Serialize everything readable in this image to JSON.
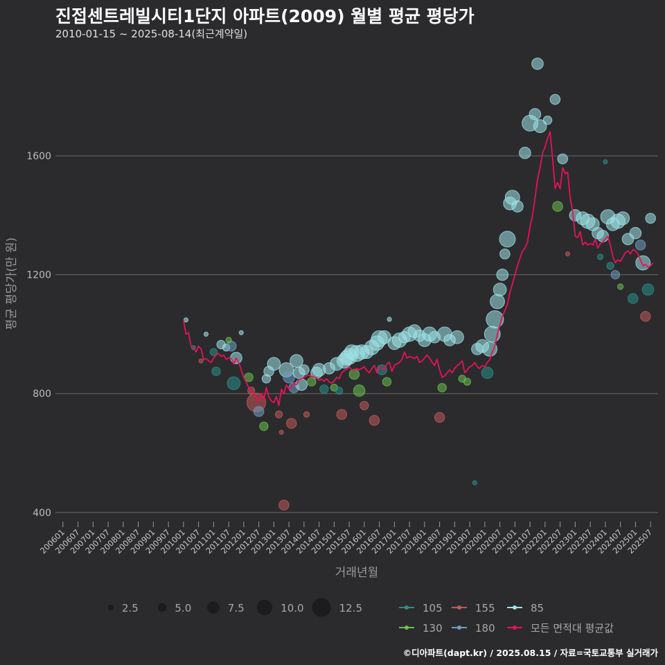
{
  "title": "진접센트레빌시티1단지 아파트(2009) 월별 평균 평당가",
  "subtitle": "2010-01-15 ~ 2025-08-14(최근계약일)",
  "footer": "©디아파트(dapt.kr) / 2025.08.15 / 자료=국토교통부 실거래가",
  "colors": {
    "background": "#2b2b2d",
    "grid": "#6a6a6a",
    "avg_line": "#e8115a",
    "s85": "#9ee4e8",
    "s105": "#2a8f88",
    "s130": "#6cc050",
    "s155": "#c25a5a",
    "s180": "#6f9fbf"
  },
  "chart_data": {
    "type": "scatter",
    "xlabel": "거래년월",
    "ylabel": "평균 평당가(만 원)",
    "ylim": [
      360,
      1980
    ],
    "y_ticks": [
      400,
      800,
      1200,
      1600
    ],
    "grid": true,
    "x_tick_labels": [
      "200601",
      "200607",
      "200701",
      "200707",
      "200801",
      "200807",
      "200901",
      "200907",
      "201001",
      "201007",
      "201101",
      "201107",
      "201201",
      "201207",
      "201301",
      "201307",
      "201401",
      "201407",
      "201501",
      "201507",
      "201601",
      "201607",
      "201701",
      "201707",
      "201801",
      "201807",
      "201901",
      "201907",
      "202001",
      "202007",
      "202101",
      "202107",
      "202201",
      "202207",
      "202301",
      "202307",
      "202401",
      "202407",
      "202501",
      "202507"
    ],
    "x_range": [
      "2005-10",
      "2025-10"
    ],
    "size_legend": [
      2.5,
      5.0,
      7.5,
      10.0,
      12.5
    ],
    "series_legend": [
      "105",
      "155",
      "85",
      "130",
      "180",
      "모든 면적대 평균값"
    ],
    "avg_line": [
      [
        "2010-01",
        1048
      ],
      [
        "2010-02",
        1000
      ],
      [
        "2010-03",
        1005
      ],
      [
        "2010-04",
        960
      ],
      [
        "2010-05",
        955
      ],
      [
        "2010-06",
        940
      ],
      [
        "2010-07",
        960
      ],
      [
        "2010-08",
        950
      ],
      [
        "2010-09",
        915
      ],
      [
        "2010-10",
        918
      ],
      [
        "2010-11",
        910
      ],
      [
        "2010-12",
        905
      ],
      [
        "2011-01",
        920
      ],
      [
        "2011-02",
        930
      ],
      [
        "2011-03",
        935
      ],
      [
        "2011-04",
        925
      ],
      [
        "2011-05",
        930
      ],
      [
        "2011-06",
        915
      ],
      [
        "2011-07",
        920
      ],
      [
        "2011-08",
        918
      ],
      [
        "2011-09",
        900
      ],
      [
        "2011-10",
        920
      ],
      [
        "2011-11",
        905
      ],
      [
        "2011-12",
        880
      ],
      [
        "2012-01",
        855
      ],
      [
        "2012-02",
        838
      ],
      [
        "2012-03",
        820
      ],
      [
        "2012-04",
        805
      ],
      [
        "2012-05",
        800
      ],
      [
        "2012-06",
        785
      ],
      [
        "2012-07",
        775
      ],
      [
        "2012-08",
        800
      ],
      [
        "2012-09",
        780
      ],
      [
        "2012-10",
        820
      ],
      [
        "2012-11",
        790
      ],
      [
        "2012-12",
        775
      ],
      [
        "2013-01",
        770
      ],
      [
        "2013-02",
        790
      ],
      [
        "2013-03",
        760
      ],
      [
        "2013-04",
        815
      ],
      [
        "2013-05",
        800
      ],
      [
        "2013-06",
        830
      ],
      [
        "2013-07",
        815
      ],
      [
        "2013-08",
        825
      ],
      [
        "2013-09",
        835
      ],
      [
        "2013-10",
        830
      ],
      [
        "2013-11",
        848
      ],
      [
        "2013-12",
        850
      ],
      [
        "2014-01",
        855
      ],
      [
        "2014-02",
        860
      ],
      [
        "2014-03",
        862
      ],
      [
        "2014-04",
        858
      ],
      [
        "2014-05",
        855
      ],
      [
        "2014-06",
        852
      ],
      [
        "2014-07",
        845
      ],
      [
        "2014-08",
        848
      ],
      [
        "2014-09",
        842
      ],
      [
        "2014-10",
        850
      ],
      [
        "2014-11",
        840
      ],
      [
        "2014-12",
        835
      ],
      [
        "2015-01",
        842
      ],
      [
        "2015-02",
        855
      ],
      [
        "2015-03",
        850
      ],
      [
        "2015-04",
        870
      ],
      [
        "2015-05",
        878
      ],
      [
        "2015-06",
        882
      ],
      [
        "2015-07",
        890
      ],
      [
        "2015-08",
        880
      ],
      [
        "2015-09",
        878
      ],
      [
        "2015-10",
        885
      ],
      [
        "2015-11",
        880
      ],
      [
        "2015-12",
        885
      ],
      [
        "2016-01",
        890
      ],
      [
        "2016-02",
        878
      ],
      [
        "2016-03",
        870
      ],
      [
        "2016-04",
        885
      ],
      [
        "2016-05",
        895
      ],
      [
        "2016-06",
        870
      ],
      [
        "2016-07",
        890
      ],
      [
        "2016-08",
        885
      ],
      [
        "2016-09",
        880
      ],
      [
        "2016-10",
        900
      ],
      [
        "2016-11",
        905
      ],
      [
        "2016-12",
        875
      ],
      [
        "2017-01",
        895
      ],
      [
        "2017-02",
        900
      ],
      [
        "2017-03",
        905
      ],
      [
        "2017-04",
        915
      ],
      [
        "2017-05",
        940
      ],
      [
        "2017-06",
        920
      ],
      [
        "2017-07",
        925
      ],
      [
        "2017-08",
        922
      ],
      [
        "2017-09",
        918
      ],
      [
        "2017-10",
        925
      ],
      [
        "2017-11",
        905
      ],
      [
        "2017-12",
        910
      ],
      [
        "2018-01",
        920
      ],
      [
        "2018-02",
        930
      ],
      [
        "2018-03",
        920
      ],
      [
        "2018-04",
        905
      ],
      [
        "2018-05",
        895
      ],
      [
        "2018-06",
        915
      ],
      [
        "2018-07",
        880
      ],
      [
        "2018-08",
        855
      ],
      [
        "2018-09",
        860
      ],
      [
        "2018-10",
        870
      ],
      [
        "2018-11",
        880
      ],
      [
        "2018-12",
        870
      ],
      [
        "2019-01",
        885
      ],
      [
        "2019-02",
        895
      ],
      [
        "2019-03",
        900
      ],
      [
        "2019-04",
        910
      ],
      [
        "2019-05",
        870
      ],
      [
        "2019-06",
        880
      ],
      [
        "2019-07",
        890
      ],
      [
        "2019-08",
        895
      ],
      [
        "2019-09",
        905
      ],
      [
        "2019-10",
        890
      ],
      [
        "2019-11",
        885
      ],
      [
        "2019-12",
        895
      ],
      [
        "2020-01",
        890
      ],
      [
        "2020-02",
        905
      ],
      [
        "2020-03",
        915
      ],
      [
        "2020-04",
        940
      ],
      [
        "2020-05",
        960
      ],
      [
        "2020-06",
        1000
      ],
      [
        "2020-07",
        1030
      ],
      [
        "2020-08",
        1060
      ],
      [
        "2020-09",
        1080
      ],
      [
        "2020-10",
        1100
      ],
      [
        "2020-11",
        1140
      ],
      [
        "2020-12",
        1170
      ],
      [
        "2021-01",
        1200
      ],
      [
        "2021-02",
        1230
      ],
      [
        "2021-03",
        1255
      ],
      [
        "2021-04",
        1280
      ],
      [
        "2021-05",
        1290
      ],
      [
        "2021-06",
        1310
      ],
      [
        "2021-07",
        1360
      ],
      [
        "2021-08",
        1400
      ],
      [
        "2021-09",
        1460
      ],
      [
        "2021-10",
        1520
      ],
      [
        "2021-11",
        1560
      ],
      [
        "2021-12",
        1610
      ],
      [
        "2022-01",
        1630
      ],
      [
        "2022-02",
        1660
      ],
      [
        "2022-03",
        1680
      ],
      [
        "2022-04",
        1590
      ],
      [
        "2022-05",
        1490
      ],
      [
        "2022-06",
        1510
      ],
      [
        "2022-07",
        1490
      ],
      [
        "2022-08",
        1560
      ],
      [
        "2022-09",
        1540
      ],
      [
        "2022-10",
        1545
      ],
      [
        "2022-11",
        1460
      ],
      [
        "2022-12",
        1410
      ],
      [
        "2023-01",
        1330
      ],
      [
        "2023-02",
        1325
      ],
      [
        "2023-03",
        1345
      ],
      [
        "2023-04",
        1300
      ],
      [
        "2023-05",
        1310
      ],
      [
        "2023-06",
        1300
      ],
      [
        "2023-07",
        1305
      ],
      [
        "2023-08",
        1300
      ],
      [
        "2023-09",
        1320
      ],
      [
        "2023-10",
        1290
      ],
      [
        "2023-11",
        1305
      ],
      [
        "2023-12",
        1310
      ],
      [
        "2024-01",
        1320
      ],
      [
        "2024-02",
        1330
      ],
      [
        "2024-03",
        1300
      ],
      [
        "2024-04",
        1260
      ],
      [
        "2024-05",
        1240
      ],
      [
        "2024-06",
        1250
      ],
      [
        "2024-07",
        1245
      ],
      [
        "2024-08",
        1260
      ],
      [
        "2024-09",
        1275
      ],
      [
        "2024-10",
        1280
      ],
      [
        "2024-11",
        1270
      ],
      [
        "2024-12",
        1285
      ],
      [
        "2025-01",
        1280
      ],
      [
        "2025-02",
        1270
      ],
      [
        "2025-03",
        1250
      ],
      [
        "2025-04",
        1230
      ],
      [
        "2025-05",
        1235
      ],
      [
        "2025-06",
        1225
      ],
      [
        "2025-07",
        1230
      ],
      [
        "2025-08",
        1240
      ]
    ],
    "points": [
      [
        "2010-02",
        1048,
        "85",
        1
      ],
      [
        "2010-05",
        955,
        "105",
        1
      ],
      [
        "2010-08",
        910,
        "155",
        1
      ],
      [
        "2010-10",
        1000,
        "85",
        1
      ],
      [
        "2011-01",
        940,
        "105",
        3
      ],
      [
        "2011-02",
        875,
        "105",
        4
      ],
      [
        "2011-04",
        965,
        "85",
        4
      ],
      [
        "2011-06",
        955,
        "85",
        3
      ],
      [
        "2011-08",
        960,
        "180",
        5
      ],
      [
        "2011-09",
        835,
        "105",
        7
      ],
      [
        "2011-10",
        920,
        "85",
        6
      ],
      [
        "2011-07",
        980,
        "130",
        2
      ],
      [
        "2011-12",
        1005,
        "85",
        1
      ],
      [
        "2012-03",
        855,
        "130",
        4
      ],
      [
        "2012-04",
        810,
        "155",
        3
      ],
      [
        "2012-06",
        770,
        "155",
        11
      ],
      [
        "2012-07",
        740,
        "180",
        5
      ],
      [
        "2012-09",
        690,
        "130",
        4
      ],
      [
        "2012-10",
        850,
        "85",
        4
      ],
      [
        "2012-11",
        875,
        "85",
        5
      ],
      [
        "2013-01",
        900,
        "85",
        7
      ],
      [
        "2013-03",
        730,
        "155",
        3
      ],
      [
        "2013-04",
        670,
        "155",
        1
      ],
      [
        "2013-05",
        425,
        "155",
        5
      ],
      [
        "2013-06",
        880,
        "85",
        8
      ],
      [
        "2013-07",
        855,
        "180",
        6
      ],
      [
        "2013-08",
        700,
        "155",
        5
      ],
      [
        "2013-09",
        820,
        "180",
        5
      ],
      [
        "2013-10",
        910,
        "85",
        7
      ],
      [
        "2013-11",
        870,
        "85",
        6
      ],
      [
        "2013-12",
        830,
        "85",
        6
      ],
      [
        "2014-01",
        880,
        "85",
        5
      ],
      [
        "2014-02",
        730,
        "155",
        2
      ],
      [
        "2014-04",
        840,
        "130",
        4
      ],
      [
        "2014-06",
        870,
        "85",
        6
      ],
      [
        "2014-07",
        880,
        "85",
        7
      ],
      [
        "2014-09",
        815,
        "105",
        4
      ],
      [
        "2014-11",
        885,
        "85",
        6
      ],
      [
        "2015-01",
        820,
        "130",
        3
      ],
      [
        "2015-02",
        900,
        "85",
        7
      ],
      [
        "2015-03",
        810,
        "105",
        3
      ],
      [
        "2015-04",
        730,
        "155",
        5
      ],
      [
        "2015-05",
        910,
        "85",
        8
      ],
      [
        "2015-06",
        920,
        "85",
        8
      ],
      [
        "2015-07",
        925,
        "85",
        9
      ],
      [
        "2015-08",
        940,
        "85",
        8
      ],
      [
        "2015-09",
        865,
        "130",
        5
      ],
      [
        "2015-10",
        935,
        "85",
        9
      ],
      [
        "2015-11",
        810,
        "130",
        6
      ],
      [
        "2015-12",
        940,
        "85",
        8
      ],
      [
        "2016-01",
        760,
        "155",
        4
      ],
      [
        "2016-02",
        940,
        "85",
        7
      ],
      [
        "2016-04",
        955,
        "85",
        8
      ],
      [
        "2016-05",
        710,
        "155",
        5
      ],
      [
        "2016-06",
        970,
        "85",
        8
      ],
      [
        "2016-07",
        985,
        "85",
        9
      ],
      [
        "2016-08",
        880,
        "105",
        5
      ],
      [
        "2016-09",
        990,
        "85",
        7
      ],
      [
        "2016-10",
        840,
        "130",
        4
      ],
      [
        "2016-11",
        1050,
        "85",
        1
      ],
      [
        "2017-01",
        970,
        "85",
        7
      ],
      [
        "2017-03",
        980,
        "85",
        8
      ],
      [
        "2017-05",
        990,
        "85",
        6
      ],
      [
        "2017-07",
        1000,
        "85",
        8
      ],
      [
        "2017-09",
        1010,
        "85",
        7
      ],
      [
        "2017-11",
        995,
        "85",
        6
      ],
      [
        "2018-01",
        980,
        "85",
        7
      ],
      [
        "2018-03",
        1000,
        "85",
        8
      ],
      [
        "2018-05",
        990,
        "85",
        6
      ],
      [
        "2018-07",
        720,
        "155",
        5
      ],
      [
        "2018-08",
        820,
        "130",
        4
      ],
      [
        "2018-09",
        1000,
        "85",
        8
      ],
      [
        "2018-11",
        980,
        "85",
        6
      ],
      [
        "2019-02",
        990,
        "85",
        7
      ],
      [
        "2019-04",
        850,
        "130",
        3
      ],
      [
        "2019-06",
        840,
        "130",
        3
      ],
      [
        "2019-09",
        500,
        "105",
        1
      ],
      [
        "2019-10",
        950,
        "85",
        6
      ],
      [
        "2019-12",
        960,
        "85",
        7
      ],
      [
        "2020-02",
        870,
        "105",
        6
      ],
      [
        "2020-03",
        950,
        "85",
        8
      ],
      [
        "2020-04",
        1000,
        "85",
        9
      ],
      [
        "2020-05",
        1050,
        "85",
        10
      ],
      [
        "2020-06",
        1110,
        "85",
        8
      ],
      [
        "2020-07",
        1150,
        "85",
        7
      ],
      [
        "2020-08",
        1200,
        "85",
        6
      ],
      [
        "2020-09",
        1270,
        "85",
        5
      ],
      [
        "2020-10",
        1320,
        "85",
        9
      ],
      [
        "2020-11",
        1440,
        "85",
        7
      ],
      [
        "2020-12",
        1460,
        "85",
        8
      ],
      [
        "2021-02",
        1430,
        "85",
        6
      ],
      [
        "2021-05",
        1610,
        "85",
        6
      ],
      [
        "2021-07",
        1710,
        "85",
        9
      ],
      [
        "2021-09",
        1740,
        "85",
        6
      ],
      [
        "2021-10",
        1910,
        "85",
        6
      ],
      [
        "2021-11",
        1700,
        "85",
        7
      ],
      [
        "2022-02",
        1720,
        "85",
        4
      ],
      [
        "2022-05",
        1790,
        "85",
        5
      ],
      [
        "2022-06",
        1430,
        "130",
        5
      ],
      [
        "2022-08",
        1590,
        "85",
        5
      ],
      [
        "2022-10",
        1270,
        "155",
        1
      ],
      [
        "2023-01",
        1400,
        "85",
        6
      ],
      [
        "2023-04",
        1390,
        "85",
        7
      ],
      [
        "2023-06",
        1380,
        "85",
        8
      ],
      [
        "2023-08",
        1370,
        "85",
        7
      ],
      [
        "2023-10",
        1340,
        "85",
        6
      ],
      [
        "2023-12",
        1330,
        "85",
        6
      ],
      [
        "2024-02",
        1395,
        "85",
        8
      ],
      [
        "2024-04",
        1370,
        "85",
        7
      ],
      [
        "2024-06",
        1380,
        "85",
        8
      ],
      [
        "2024-08",
        1390,
        "85",
        7
      ],
      [
        "2024-10",
        1320,
        "85",
        6
      ],
      [
        "2025-01",
        1340,
        "85",
        6
      ],
      [
        "2025-03",
        1300,
        "180",
        5
      ],
      [
        "2025-04",
        1240,
        "85",
        8
      ],
      [
        "2025-05",
        1060,
        "155",
        5
      ],
      [
        "2025-06",
        1150,
        "105",
        6
      ],
      [
        "2025-07",
        1390,
        "85",
        5
      ],
      [
        "2024-12",
        1120,
        "105",
        5
      ],
      [
        "2024-05",
        1200,
        "180",
        4
      ],
      [
        "2023-11",
        1260,
        "105",
        2
      ],
      [
        "2024-03",
        1230,
        "105",
        3
      ],
      [
        "2024-07",
        1160,
        "130",
        2
      ],
      [
        "2024-01",
        1580,
        "105",
        1
      ]
    ]
  }
}
